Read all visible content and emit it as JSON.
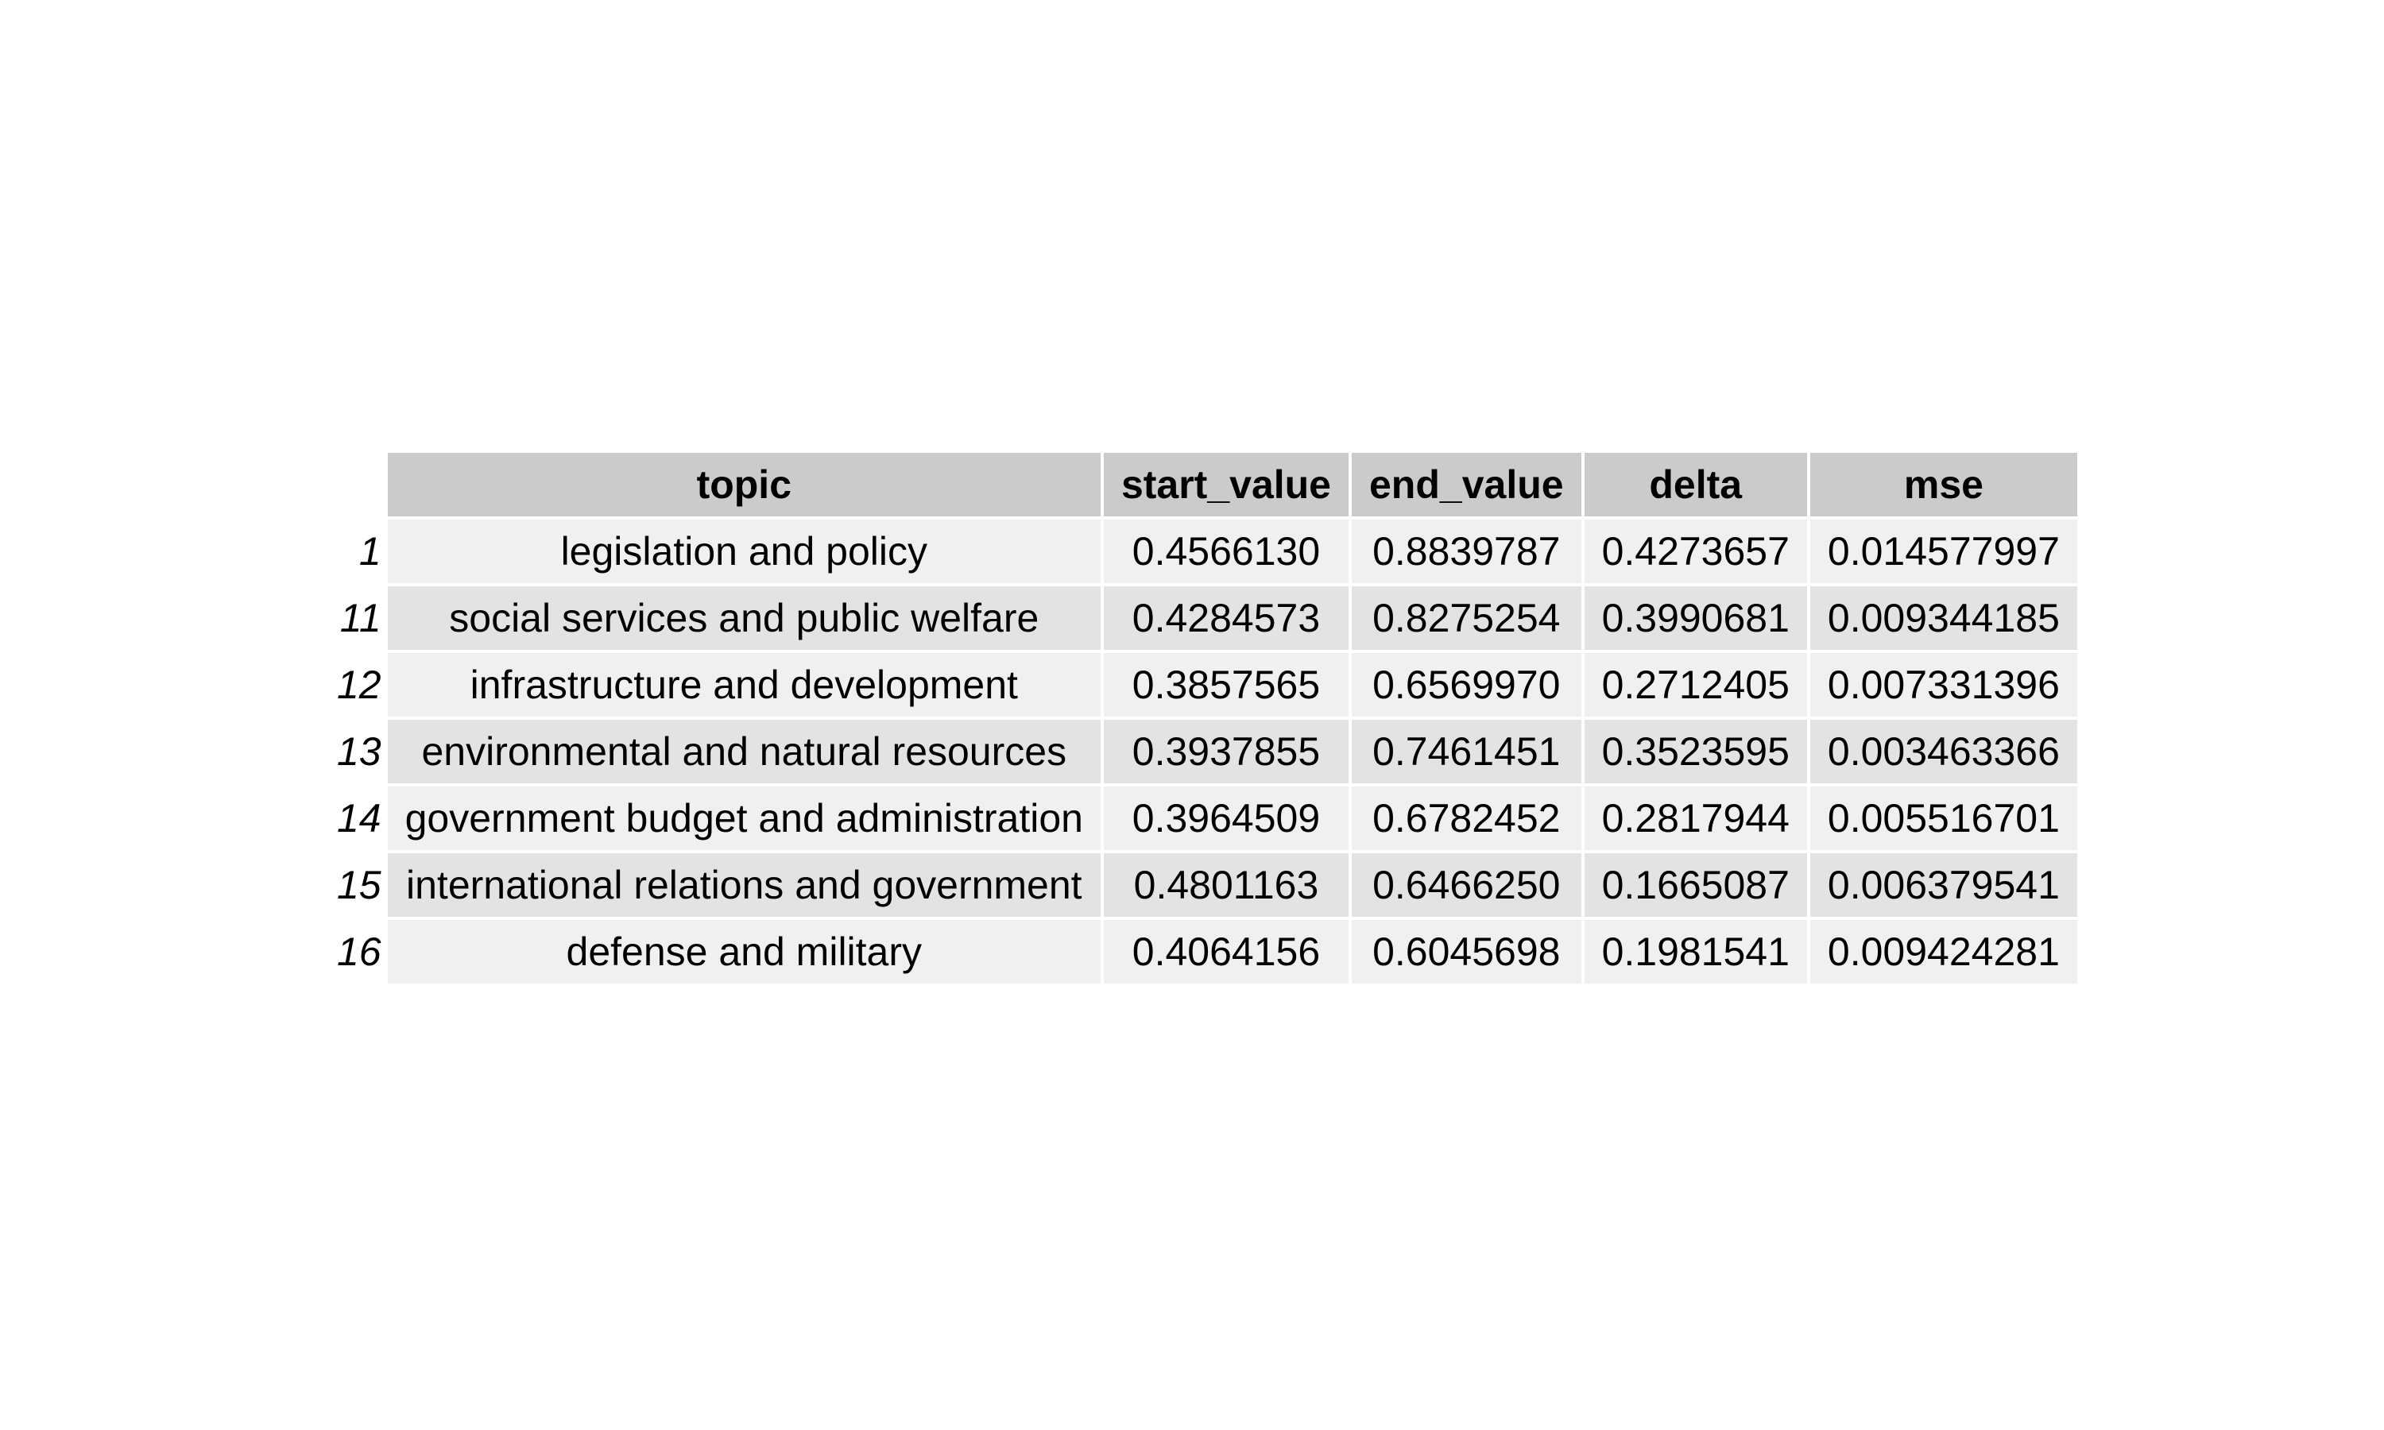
{
  "chart_data": {
    "type": "table",
    "columns": [
      "topic",
      "start_value",
      "end_value",
      "delta",
      "mse"
    ],
    "rows": [
      {
        "rowname": "1",
        "cells": [
          "legislation and policy",
          "0.4566130",
          "0.8839787",
          "0.4273657",
          "0.014577997"
        ]
      },
      {
        "rowname": "11",
        "cells": [
          "social services and public welfare",
          "0.4284573",
          "0.8275254",
          "0.3990681",
          "0.009344185"
        ]
      },
      {
        "rowname": "12",
        "cells": [
          "infrastructure and development",
          "0.3857565",
          "0.6569970",
          "0.2712405",
          "0.007331396"
        ]
      },
      {
        "rowname": "13",
        "cells": [
          "environmental and natural resources",
          "0.3937855",
          "0.7461451",
          "0.3523595",
          "0.003463366"
        ]
      },
      {
        "rowname": "14",
        "cells": [
          "government budget and administration",
          "0.3964509",
          "0.6782452",
          "0.2817944",
          "0.005516701"
        ]
      },
      {
        "rowname": "15",
        "cells": [
          "international relations and government",
          "0.4801163",
          "0.6466250",
          "0.1665087",
          "0.006379541"
        ]
      },
      {
        "rowname": "16",
        "cells": [
          "defense and military",
          "0.4064156",
          "0.6045698",
          "0.1981541",
          "0.009424281"
        ]
      }
    ]
  },
  "colors": {
    "header_bg": "#cbcbcb",
    "row_odd_bg": "#f0f0f0",
    "row_even_bg": "#e3e3e3"
  }
}
